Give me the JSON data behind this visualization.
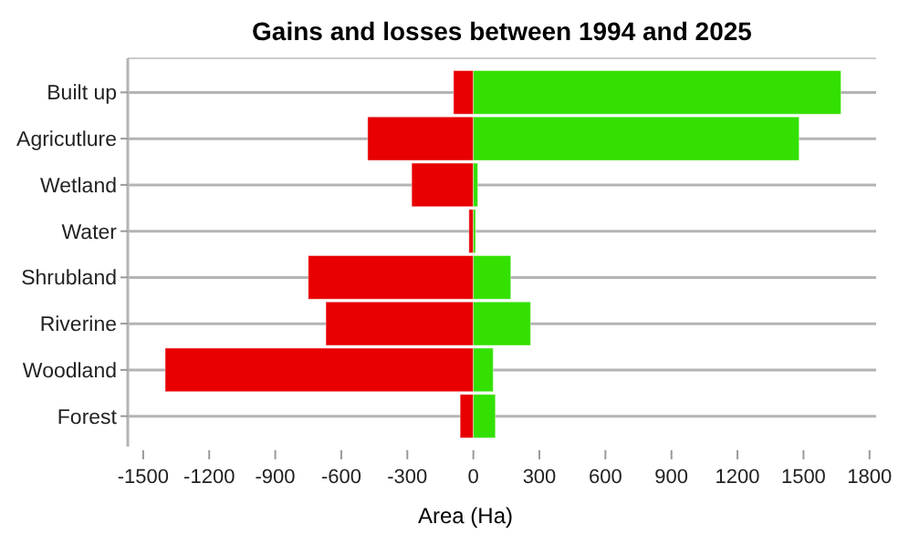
{
  "chart_data": {
    "type": "bar",
    "title": "Gains and losses between 1994 and 2025",
    "xlabel": "Area (Ha)",
    "orientation": "horizontal",
    "stacked": true,
    "grid": "y",
    "categories": [
      "Built up",
      "Agricutlure",
      "Wetland",
      "Water",
      "Shrubland",
      "Riverine",
      "Woodland",
      "Forest"
    ],
    "series": [
      {
        "color": "#e80000",
        "values": [
          -90,
          -480,
          -280,
          -20,
          -750,
          -670,
          -1400,
          -60
        ]
      },
      {
        "color": "#33e000",
        "values": [
          1670,
          1480,
          20,
          10,
          170,
          260,
          90,
          100
        ]
      }
    ],
    "xlim": [
      -1570,
      1830
    ],
    "xticks": [
      -1500,
      -1200,
      -900,
      -600,
      -300,
      0,
      300,
      600,
      900,
      1200,
      1500,
      1800
    ]
  }
}
